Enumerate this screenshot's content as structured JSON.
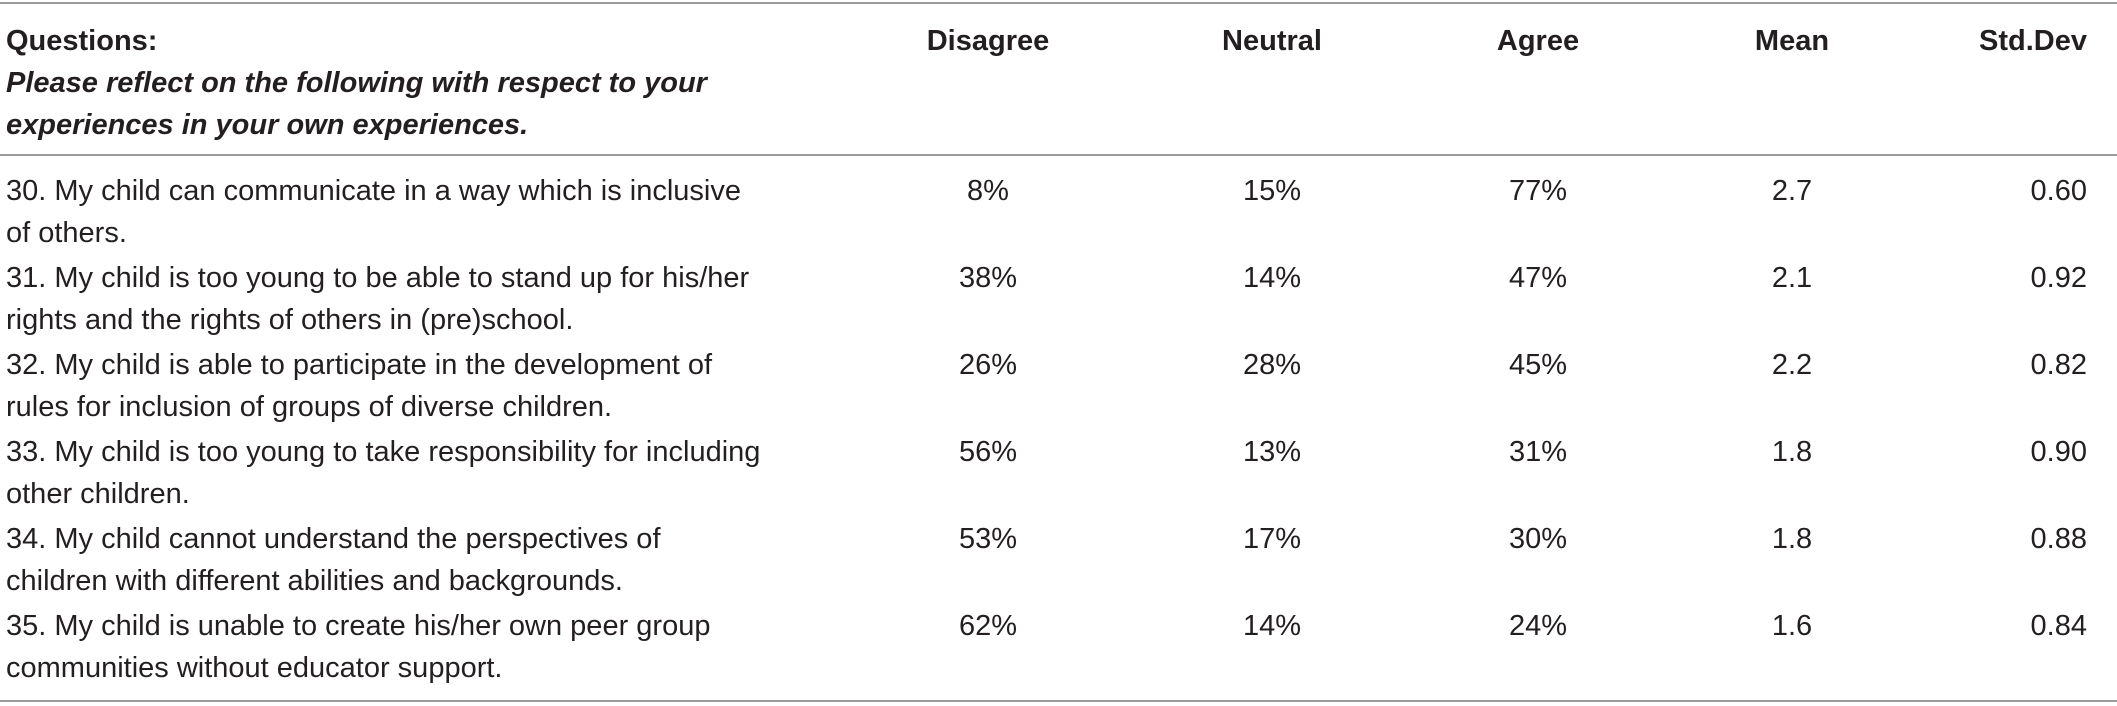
{
  "headers": {
    "questions": "Questions:",
    "questions_sub_line1": "Please reflect on the following with respect to your",
    "questions_sub_line2": "experiences in your own experiences.",
    "disagree": "Disagree",
    "neutral": "Neutral",
    "agree": "Agree",
    "mean": "Mean",
    "std": "Std.Dev"
  },
  "rows": [
    {
      "line1": "30. My child can communicate in a way which is inclusive",
      "line2": "of others.",
      "disagree": "8%",
      "neutral": "15%",
      "agree": "77%",
      "mean": "2.7",
      "std": "0.60"
    },
    {
      "line1": "31. My child is too young to be able to stand up for his/her",
      "line2": "rights and the rights of others in (pre)school.",
      "disagree": "38%",
      "neutral": "14%",
      "agree": "47%",
      "mean": "2.1",
      "std": "0.92"
    },
    {
      "line1": "32. My child is able to participate in the development of",
      "line2": "rules for inclusion of groups of diverse children.",
      "disagree": "26%",
      "neutral": "28%",
      "agree": "45%",
      "mean": "2.2",
      "std": "0.82"
    },
    {
      "line1": "33. My child is too young to take responsibility for including",
      "line2": "other children.",
      "disagree": "56%",
      "neutral": "13%",
      "agree": "31%",
      "mean": "1.8",
      "std": "0.90"
    },
    {
      "line1": "34. My child cannot understand the perspectives of",
      "line2": "children with different abilities and backgrounds.",
      "disagree": "53%",
      "neutral": "17%",
      "agree": "30%",
      "mean": "1.8",
      "std": "0.88"
    },
    {
      "line1": "35. My child is unable to create his/her own peer group",
      "line2": "communities without educator support.",
      "disagree": "62%",
      "neutral": "14%",
      "agree": "24%",
      "mean": "1.6",
      "std": "0.84"
    }
  ]
}
